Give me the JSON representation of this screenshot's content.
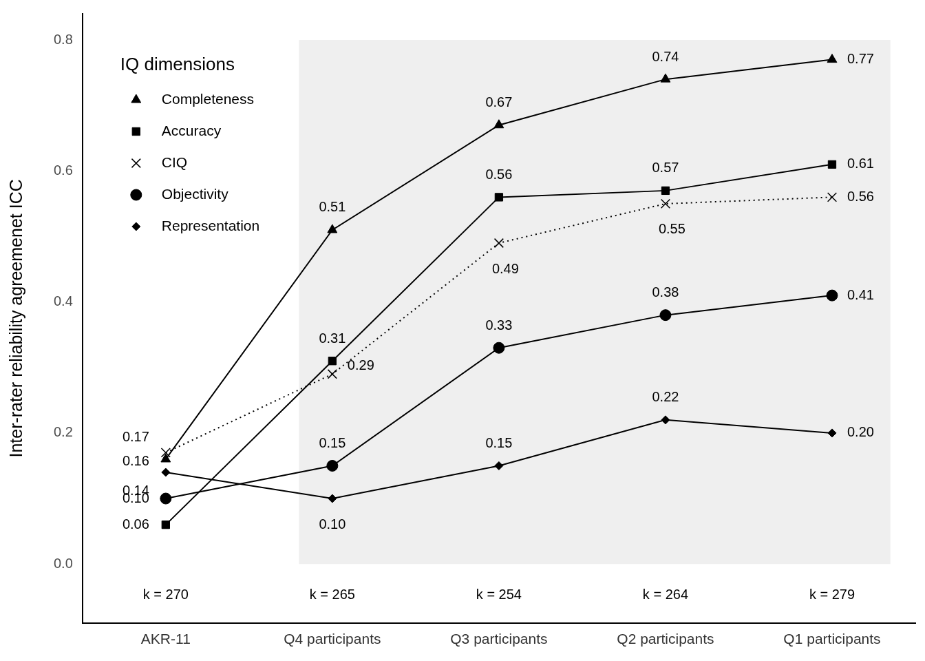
{
  "chart_data": {
    "type": "line",
    "categories": [
      "AKR-11",
      "Q4 participants",
      "Q3 participants",
      "Q2 participants",
      "Q1 participants"
    ],
    "series": [
      {
        "name": "Completeness",
        "color": "#000000",
        "marker": "triangle",
        "line_style": "solid",
        "values": [
          0.16,
          0.51,
          0.67,
          0.74,
          0.77
        ],
        "value_labels": [
          "0.16",
          "0.51",
          "0.67",
          "0.74",
          "0.77"
        ]
      },
      {
        "name": "Accuracy",
        "color": "#000000",
        "marker": "square",
        "line_style": "solid",
        "values": [
          0.06,
          0.31,
          0.56,
          0.57,
          0.61
        ],
        "value_labels": [
          "0.06",
          "0.31",
          "0.56",
          "0.57",
          "0.61"
        ]
      },
      {
        "name": "CIQ",
        "color": "#000000",
        "marker": "x",
        "line_style": "dotted",
        "values": [
          0.17,
          0.29,
          0.49,
          0.55,
          0.56
        ],
        "value_labels": [
          "0.17",
          "0.29",
          "0.49",
          "0.55",
          "0.56"
        ]
      },
      {
        "name": "Objectivity",
        "color": "#000000",
        "marker": "circle",
        "line_style": "solid",
        "values": [
          0.1,
          0.15,
          0.33,
          0.38,
          0.41
        ],
        "value_labels": [
          "0.10",
          "0.15",
          "0.33",
          "0.38",
          "0.41"
        ]
      },
      {
        "name": "Representation",
        "color": "#000000",
        "marker": "diamond",
        "line_style": "solid",
        "values": [
          0.14,
          0.1,
          0.15,
          0.22,
          0.2
        ],
        "value_labels": [
          "0.14",
          "0.10",
          "0.15",
          "0.22",
          "0.20"
        ]
      }
    ],
    "ylabel": "Inter-rater reliability agreemenet ICC",
    "legend_title": "IQ dimensions",
    "legend": "upper left",
    "ylim": [
      -0.09,
      0.84
    ],
    "yticks": [
      {
        "value": 0,
        "label": "0.0"
      },
      {
        "value": 0.2,
        "label": "0.2"
      },
      {
        "value": 0.4,
        "label": "0.4"
      },
      {
        "value": 0.6,
        "label": "0.6"
      },
      {
        "value": 0.8,
        "label": "0.8"
      }
    ],
    "grid": false,
    "data_labels": true,
    "annotations": [
      "k = 270",
      "k = 265",
      "k = 254",
      "k = 264",
      "k = 279"
    ]
  }
}
